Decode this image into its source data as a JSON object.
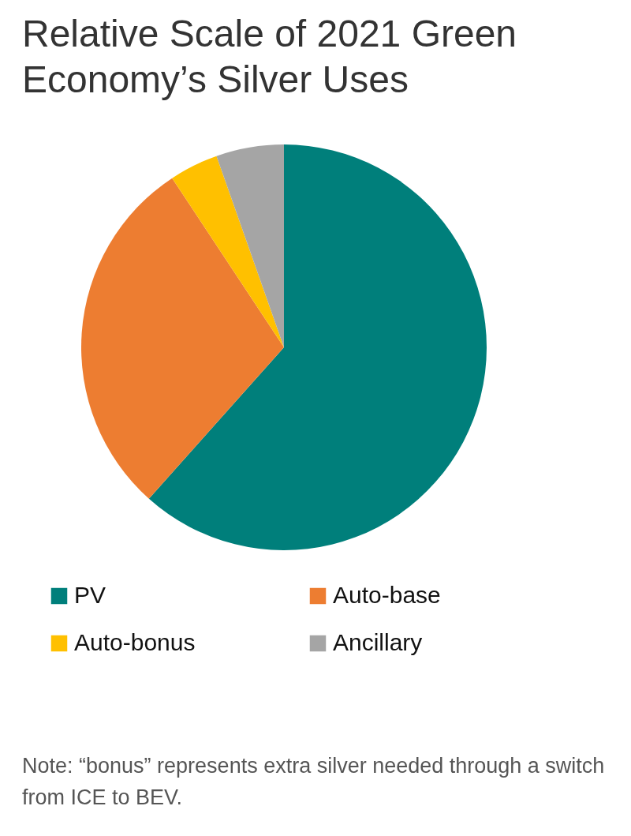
{
  "chart_data": {
    "type": "pie",
    "title": "Relative Scale of 2021 Green Economy’s Silver Uses",
    "categories": [
      "PV",
      "Auto-base",
      "Auto-bonus",
      "Ancillary"
    ],
    "values": [
      61.6,
      29.1,
      3.9,
      5.4
    ],
    "colors": [
      "#007f7b",
      "#ed7d31",
      "#ffc000",
      "#a5a5a5"
    ],
    "legend": "bottom",
    "annotations": [
      "Note: “bonus” represents extra silver needed through a switch from ICE to BEV."
    ]
  }
}
